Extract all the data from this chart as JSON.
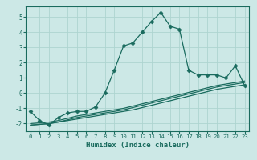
{
  "xlabel": "Humidex (Indice chaleur)",
  "ylabel": "",
  "bg_color": "#cce8e6",
  "line_color": "#1a6b5e",
  "grid_color": "#aed4d0",
  "x_data": [
    0,
    1,
    2,
    3,
    4,
    5,
    6,
    7,
    8,
    9,
    10,
    11,
    12,
    13,
    14,
    15,
    16,
    17,
    18,
    19,
    20,
    21,
    22,
    23
  ],
  "y_main": [
    -1.2,
    -1.8,
    -2.1,
    -1.6,
    -1.3,
    -1.2,
    -1.2,
    -0.9,
    0.0,
    1.5,
    3.1,
    3.3,
    4.0,
    4.7,
    5.3,
    4.4,
    4.2,
    1.5,
    1.2,
    1.2,
    1.2,
    1.0,
    1.8,
    0.5
  ],
  "y_line1": [
    -2.1,
    -2.05,
    -2.0,
    -1.9,
    -1.8,
    -1.7,
    -1.6,
    -1.5,
    -1.4,
    -1.3,
    -1.2,
    -1.1,
    -0.95,
    -0.8,
    -0.65,
    -0.5,
    -0.35,
    -0.2,
    -0.05,
    0.1,
    0.25,
    0.35,
    0.45,
    0.55
  ],
  "y_line2": [
    -2.1,
    -2.05,
    -2.0,
    -1.9,
    -1.75,
    -1.6,
    -1.5,
    -1.4,
    -1.3,
    -1.2,
    -1.1,
    -0.95,
    -0.8,
    -0.65,
    -0.5,
    -0.35,
    -0.2,
    -0.05,
    0.1,
    0.25,
    0.4,
    0.5,
    0.6,
    0.7
  ],
  "y_line3": [
    -2.0,
    -1.95,
    -1.9,
    -1.8,
    -1.65,
    -1.5,
    -1.4,
    -1.3,
    -1.2,
    -1.1,
    -1.0,
    -0.85,
    -0.7,
    -0.55,
    -0.4,
    -0.25,
    -0.1,
    0.05,
    0.2,
    0.35,
    0.5,
    0.6,
    0.7,
    0.8
  ],
  "ylim": [
    -2.5,
    5.7
  ],
  "xlim": [
    -0.5,
    23.5
  ],
  "yticks": [
    -2,
    -1,
    0,
    1,
    2,
    3,
    4,
    5
  ],
  "xticks": [
    0,
    1,
    2,
    3,
    4,
    5,
    6,
    7,
    8,
    9,
    10,
    11,
    12,
    13,
    14,
    15,
    16,
    17,
    18,
    19,
    20,
    21,
    22,
    23
  ]
}
